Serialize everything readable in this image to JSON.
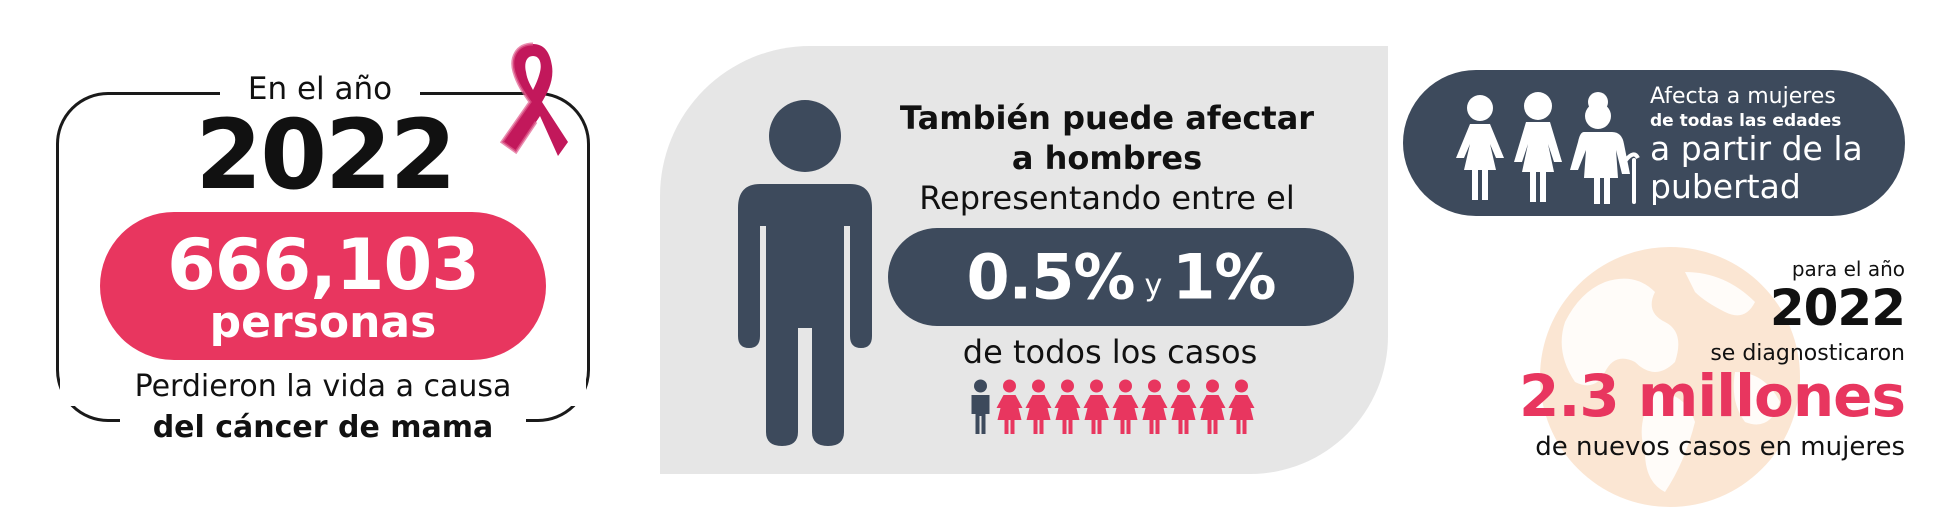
{
  "deaths": {
    "intro": "En el año",
    "year": "2022",
    "number": "666,103",
    "unit": "personas",
    "description": "Perdieron la vida a causa",
    "description_bold": "del cáncer de mama"
  },
  "men": {
    "title": "También puede afectar a hombres",
    "subtitle": "Representando entre el",
    "pct_low": "0.5%",
    "connector": "y",
    "pct_high": "1%",
    "footer": "de todos los casos",
    "people_highlighted": 1,
    "people_total": 10
  },
  "ages": {
    "line1": "Afecta a mujeres",
    "line2": "de todas las edades",
    "line3": "a partir de la pubertad"
  },
  "diagnoses": {
    "intro": "para el año",
    "year": "2022",
    "verb": "se diagnosticaron",
    "number": "2.3 millones",
    "footer": "de nuevos casos en mujeres"
  },
  "colors": {
    "pink": "#e8365f",
    "slate": "#3d4a5c",
    "panel_gray": "#e6e6e6",
    "globe": "#fbe6d3",
    "ribbon": "#c2185b"
  },
  "icons": [
    "pink-ribbon-icon",
    "man-figure-icon",
    "person-icon",
    "girl-icon",
    "woman-icon",
    "elderly-woman-icon",
    "globe-icon"
  ]
}
